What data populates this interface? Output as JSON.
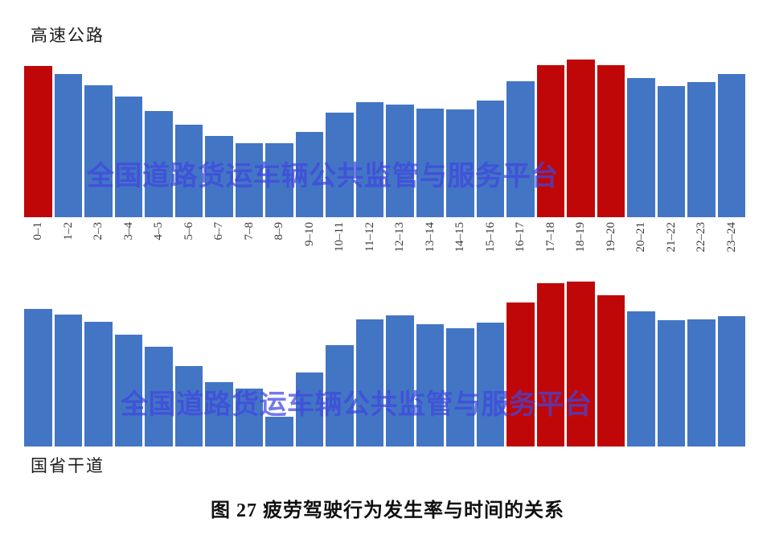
{
  "caption": "图 27 疲劳驾驶行为发生率与时间的关系",
  "watermark": {
    "text": "全国道路货运车辆公共监管与服务平台",
    "color": "#3F46E0"
  },
  "colors": {
    "bar_blue": "#4375C5",
    "bar_red": "#C00707"
  },
  "chart_data": [
    {
      "type": "bar",
      "title": "高速公路",
      "categories": [
        "0–1",
        "1–2",
        "2–3",
        "3–4",
        "4–5",
        "5–6",
        "6–7",
        "7–8",
        "8–9",
        "9–10",
        "10–11",
        "11–12",
        "12–13",
        "13–14",
        "14–15",
        "15–16",
        "16–17",
        "17–18",
        "18–19",
        "19–20",
        "20–21",
        "21–22",
        "22–23",
        "23–24"
      ],
      "values": [
        188,
        178,
        164,
        150,
        132,
        115,
        101,
        92,
        92,
        106,
        130,
        143,
        140,
        135,
        134,
        145,
        169,
        189,
        196,
        189,
        173,
        163,
        168,
        178
      ],
      "highlight_indices": [
        0,
        17,
        18,
        19
      ],
      "xlabel": "",
      "ylabel": "",
      "y_axis_visible": false,
      "x_labels_visible": true,
      "value_unit": "relative occurrence rate (no y-axis scale shown, values in px height)",
      "legend": null,
      "grid": false
    },
    {
      "type": "bar",
      "title": "国省干道",
      "categories": [],
      "values": [
        171,
        164,
        155,
        139,
        124,
        100,
        80,
        72,
        37,
        92,
        126,
        158,
        163,
        152,
        147,
        154,
        179,
        203,
        205,
        188,
        168,
        157,
        158,
        162
      ],
      "highlight_indices": [
        16,
        17,
        18,
        19
      ],
      "xlabel": "",
      "ylabel": "",
      "y_axis_visible": false,
      "x_labels_visible": false,
      "value_unit": "relative occurrence rate (no y-axis scale shown, values in px height)",
      "legend": null,
      "grid": false
    }
  ]
}
